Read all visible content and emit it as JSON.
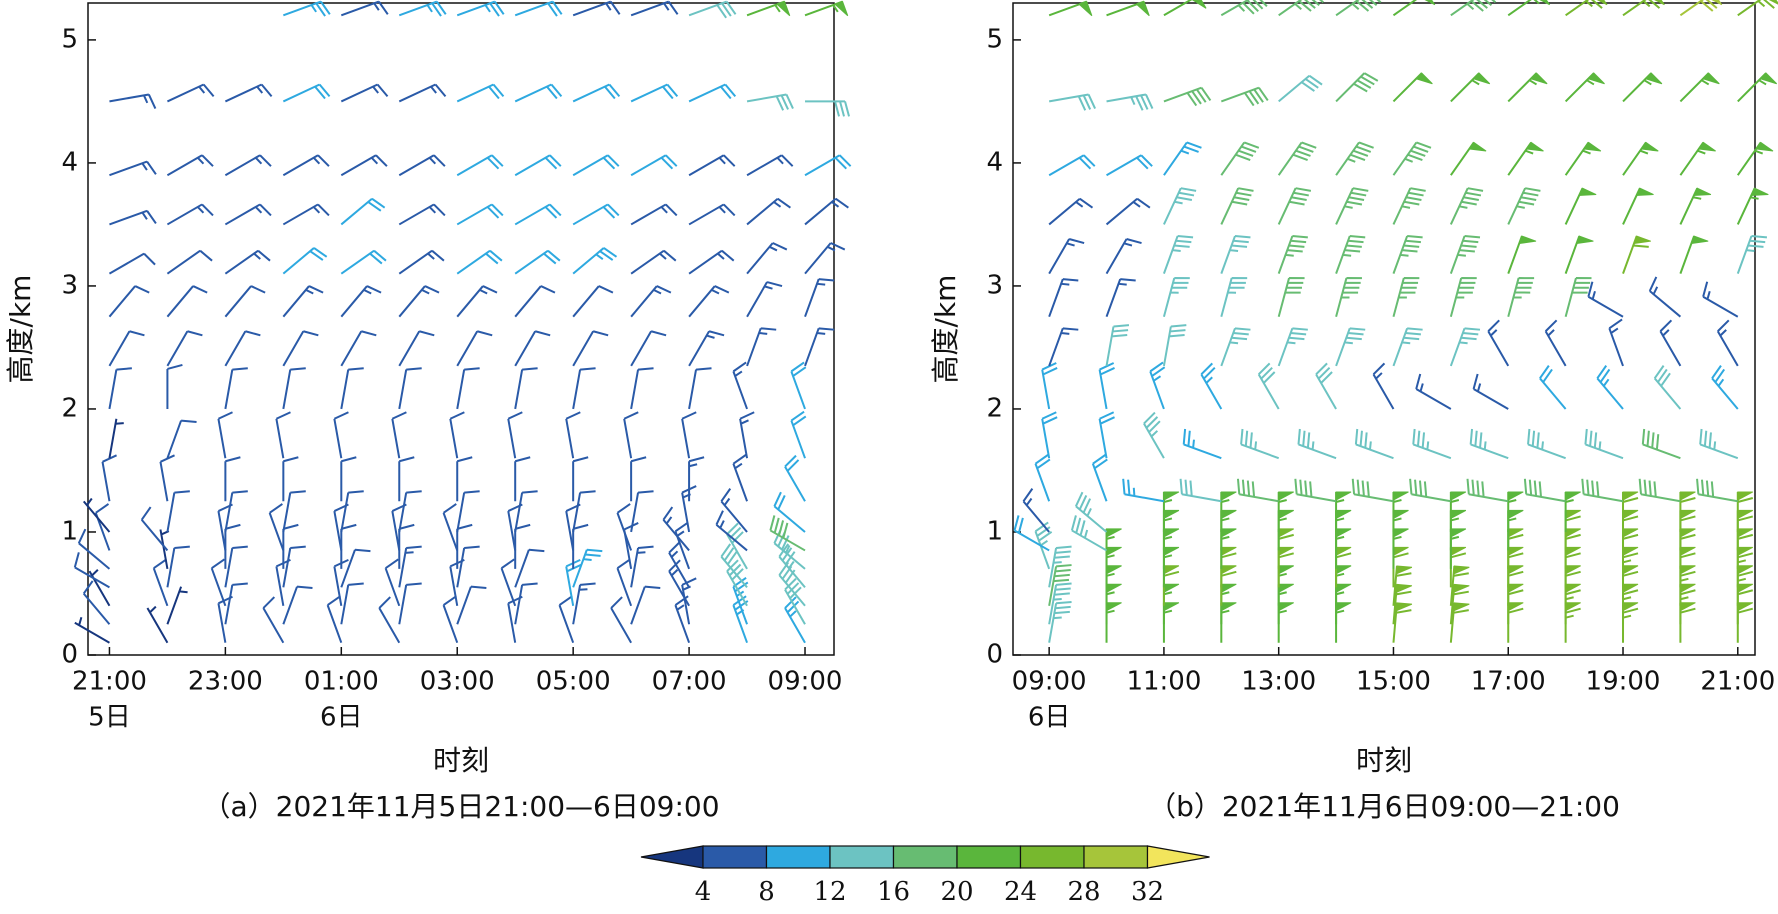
{
  "chart_data": [
    {
      "type": "wind_barb",
      "caption": "（a）2021年11月5日21:00—6日09:00",
      "xlabel": "时刻",
      "ylabel": "高度/km",
      "x": [
        0,
        1,
        2,
        3,
        4,
        5,
        6,
        7,
        8,
        9,
        10,
        11,
        12
      ],
      "xlim": [
        -0.37,
        12.5
      ],
      "xticks": [
        {
          "value": 0,
          "label": "21:00"
        },
        {
          "value": 2,
          "label": "23:00"
        },
        {
          "value": 4,
          "label": "01:00"
        },
        {
          "value": 6,
          "label": "03:00"
        },
        {
          "value": 8,
          "label": "05:00"
        },
        {
          "value": 10,
          "label": "07:00"
        },
        {
          "value": 12,
          "label": "09:00"
        }
      ],
      "day_labels": [
        {
          "value": 0,
          "label": "5日"
        },
        {
          "value": 4,
          "label": "6日"
        }
      ],
      "ylim": [
        0,
        5.3
      ],
      "yticks": [
        0,
        1,
        2,
        3,
        4,
        5
      ],
      "levels": [
        0.1,
        0.25,
        0.4,
        0.55,
        0.7,
        0.85,
        1.0,
        1.25,
        1.6,
        2.0,
        2.35,
        2.75,
        3.1,
        3.5,
        3.9,
        4.5,
        5.2
      ],
      "speed": [
        [
          3,
          4,
          3,
          4,
          4,
          4,
          3,
          4,
          3,
          4,
          4,
          4,
          5,
          6,
          6,
          6,
          null
        ],
        [
          3,
          3,
          4,
          4,
          3,
          4,
          4,
          4,
          4,
          5,
          5,
          5,
          5,
          6,
          6,
          6,
          null
        ],
        [
          4,
          4,
          5,
          4,
          5,
          4,
          5,
          4,
          4,
          4,
          5,
          5,
          6,
          6,
          6,
          6,
          null
        ],
        [
          4,
          5,
          4,
          4,
          5,
          5,
          4,
          4,
          4,
          5,
          5,
          6,
          8,
          6,
          6,
          9,
          10
        ],
        [
          4,
          5,
          5,
          5,
          4,
          4,
          4,
          5,
          4,
          4,
          5,
          6,
          9,
          9,
          6,
          6,
          6
        ],
        [
          5,
          5,
          5,
          6,
          4,
          5,
          5,
          4,
          4,
          4,
          5,
          6,
          6,
          6,
          6,
          6,
          10
        ],
        [
          5,
          5,
          4,
          5,
          5,
          5,
          5,
          4,
          4,
          4,
          5,
          6,
          9,
          9,
          9,
          9,
          10
        ],
        [
          5,
          5,
          5,
          5,
          5,
          5,
          5,
          5,
          4,
          4,
          5,
          5,
          9,
          9,
          9,
          9,
          9
        ],
        [
          5,
          6,
          9,
          10,
          5,
          5,
          5,
          4,
          4,
          4,
          5,
          5,
          10,
          9,
          9,
          9,
          6
        ],
        [
          5,
          5,
          5,
          6,
          5,
          5,
          5,
          5,
          4,
          5,
          5,
          6,
          6,
          6,
          9,
          9,
          6
        ],
        [
          6,
          6,
          6,
          7,
          6,
          7,
          6,
          6,
          5,
          5,
          6,
          6,
          6,
          7,
          7,
          9,
          13
        ],
        [
          10,
          10,
          12,
          12,
          12,
          7,
          7,
          7,
          6,
          7,
          7,
          7,
          7,
          7,
          7,
          13,
          22
        ],
        [
          10,
          12,
          13,
          14,
          14,
          16,
          8,
          9,
          9,
          9,
          6,
          7,
          7,
          7,
          9,
          13,
          22
        ]
      ],
      "direction": [
        [
          300,
          320,
          330,
          300,
          310,
          340,
          320,
          350,
          10,
          10,
          30,
          40,
          60,
          70,
          70,
          80,
          null
        ],
        [
          330,
          20,
          340,
          10,
          350,
          320,
          10,
          350,
          20,
          0,
          30,
          40,
          55,
          60,
          60,
          65,
          null
        ],
        [
          350,
          10,
          340,
          10,
          0,
          350,
          10,
          0,
          350,
          10,
          30,
          40,
          55,
          60,
          60,
          65,
          null
        ],
        [
          330,
          20,
          350,
          10,
          0,
          340,
          10,
          0,
          350,
          10,
          30,
          40,
          50,
          60,
          60,
          65,
          70
        ],
        [
          340,
          10,
          350,
          20,
          0,
          350,
          10,
          0,
          350,
          10,
          30,
          40,
          55,
          50,
          60,
          65,
          70
        ],
        [
          330,
          10,
          340,
          10,
          0,
          350,
          10,
          0,
          350,
          10,
          30,
          40,
          55,
          60,
          60,
          65,
          70
        ],
        [
          340,
          20,
          350,
          10,
          0,
          340,
          10,
          0,
          350,
          10,
          30,
          40,
          55,
          60,
          60,
          65,
          70
        ],
        [
          350,
          10,
          340,
          20,
          0,
          350,
          10,
          0,
          350,
          10,
          30,
          40,
          55,
          60,
          60,
          65,
          70
        ],
        [
          340,
          10,
          350,
          20,
          0,
          350,
          10,
          0,
          350,
          10,
          30,
          40,
          50,
          60,
          60,
          65,
          70
        ],
        [
          330,
          20,
          340,
          10,
          350,
          340,
          10,
          0,
          350,
          10,
          30,
          40,
          55,
          60,
          60,
          65,
          70
        ],
        [
          340,
          350,
          330,
          330,
          340,
          320,
          350,
          0,
          350,
          10,
          30,
          40,
          55,
          60,
          60,
          65,
          70
        ],
        [
          340,
          340,
          330,
          320,
          330,
          310,
          320,
          340,
          350,
          340,
          20,
          30,
          40,
          50,
          60,
          80,
          70
        ],
        [
          330,
          330,
          320,
          320,
          310,
          300,
          310,
          330,
          340,
          340,
          20,
          20,
          40,
          50,
          60,
          90,
          70
        ]
      ]
    },
    {
      "type": "wind_barb",
      "caption": "（b）2021年11月6日09:00—21:00",
      "xlabel": "时刻",
      "ylabel": "高度/km",
      "x": [
        0,
        1,
        2,
        3,
        4,
        5,
        6,
        7,
        8,
        9,
        10,
        11,
        12
      ],
      "xlim": [
        -0.63,
        12.3
      ],
      "xticks": [
        {
          "value": 0,
          "label": "09:00"
        },
        {
          "value": 2,
          "label": "11:00"
        },
        {
          "value": 4,
          "label": "13:00"
        },
        {
          "value": 6,
          "label": "15:00"
        },
        {
          "value": 8,
          "label": "17:00"
        },
        {
          "value": 10,
          "label": "19:00"
        },
        {
          "value": 12,
          "label": "21:00"
        }
      ],
      "day_labels": [
        {
          "value": 0,
          "label": "6日"
        }
      ],
      "ylim": [
        0,
        5.3
      ],
      "yticks": [
        0,
        1,
        2,
        3,
        4,
        5
      ],
      "levels": [
        0.1,
        0.25,
        0.4,
        0.55,
        0.7,
        0.85,
        1.0,
        1.25,
        1.6,
        2.0,
        2.35,
        2.75,
        3.1,
        3.5,
        3.9,
        4.5,
        5.2
      ],
      "speed": [
        [
          14,
          14,
          16,
          14,
          14,
          8,
          6,
          8,
          8,
          8,
          6,
          6,
          6,
          6,
          8,
          12,
          20
        ],
        [
          22,
          22,
          22,
          22,
          22,
          14,
          14,
          8,
          8,
          8,
          12,
          6,
          6,
          6,
          8,
          14,
          20
        ],
        [
          22,
          22,
          24,
          22,
          22,
          22,
          22,
          10,
          14,
          10,
          12,
          14,
          14,
          14,
          10,
          16,
          20
        ],
        [
          22,
          22,
          24,
          24,
          22,
          22,
          22,
          12,
          10,
          10,
          14,
          14,
          14,
          16,
          16,
          16,
          18
        ],
        [
          22,
          22,
          22,
          24,
          24,
          22,
          22,
          16,
          14,
          12,
          14,
          16,
          18,
          16,
          16,
          12,
          18
        ],
        [
          22,
          22,
          22,
          24,
          22,
          22,
          22,
          16,
          14,
          12,
          14,
          18,
          18,
          18,
          18,
          16,
          18
        ],
        [
          24,
          24,
          24,
          24,
          22,
          22,
          22,
          16,
          14,
          6,
          14,
          18,
          18,
          18,
          18,
          20,
          20
        ],
        [
          24,
          24,
          24,
          24,
          22,
          22,
          22,
          16,
          14,
          6,
          14,
          18,
          18,
          18,
          20,
          22,
          18
        ],
        [
          24,
          24,
          24,
          24,
          24,
          22,
          22,
          16,
          14,
          6,
          6,
          18,
          20,
          18,
          22,
          22,
          22
        ],
        [
          26,
          26,
          24,
          24,
          24,
          24,
          22,
          16,
          14,
          8,
          6,
          16,
          20,
          20,
          22,
          22,
          26
        ],
        [
          26,
          26,
          24,
          26,
          24,
          24,
          24,
          16,
          14,
          10,
          6,
          6,
          24,
          20,
          22,
          22,
          26
        ],
        [
          24,
          26,
          26,
          24,
          24,
          24,
          24,
          16,
          16,
          12,
          6,
          6,
          20,
          22,
          22,
          22,
          28
        ],
        [
          24,
          24,
          26,
          26,
          24,
          24,
          24,
          16,
          14,
          10,
          6,
          6,
          14,
          22,
          22,
          22,
          26
        ]
      ],
      "direction": [
        [
          10,
          10,
          10,
          10,
          340,
          300,
          320,
          340,
          350,
          350,
          20,
          20,
          30,
          50,
          60,
          80,
          70
        ],
        [
          0,
          0,
          0,
          0,
          0,
          300,
          310,
          340,
          350,
          350,
          10,
          20,
          30,
          50,
          60,
          80,
          70
        ],
        [
          0,
          0,
          0,
          0,
          0,
          0,
          0,
          280,
          330,
          340,
          10,
          15,
          20,
          25,
          35,
          70,
          60
        ],
        [
          0,
          0,
          0,
          0,
          0,
          0,
          0,
          280,
          290,
          330,
          20,
          15,
          20,
          25,
          35,
          70,
          60
        ],
        [
          0,
          0,
          0,
          0,
          0,
          0,
          0,
          280,
          290,
          330,
          20,
          15,
          20,
          25,
          35,
          50,
          55
        ],
        [
          0,
          0,
          0,
          0,
          0,
          0,
          0,
          280,
          290,
          330,
          20,
          15,
          20,
          25,
          35,
          45,
          55
        ],
        [
          5,
          5,
          5,
          0,
          0,
          0,
          0,
          280,
          290,
          330,
          20,
          15,
          20,
          25,
          35,
          45,
          55
        ],
        [
          5,
          5,
          5,
          0,
          0,
          0,
          0,
          280,
          290,
          300,
          20,
          15,
          20,
          25,
          35,
          45,
          55
        ],
        [
          0,
          0,
          0,
          0,
          0,
          0,
          0,
          280,
          290,
          300,
          330,
          15,
          20,
          25,
          35,
          45,
          55
        ],
        [
          0,
          0,
          0,
          0,
          0,
          0,
          0,
          280,
          290,
          320,
          330,
          15,
          20,
          25,
          35,
          45,
          55
        ],
        [
          0,
          0,
          0,
          0,
          0,
          0,
          0,
          280,
          290,
          320,
          340,
          300,
          20,
          25,
          35,
          45,
          55
        ],
        [
          0,
          0,
          0,
          0,
          0,
          0,
          0,
          280,
          290,
          320,
          330,
          310,
          20,
          25,
          35,
          45,
          55
        ],
        [
          0,
          0,
          0,
          0,
          0,
          0,
          0,
          280,
          290,
          320,
          330,
          300,
          20,
          25,
          35,
          45,
          55
        ]
      ]
    }
  ],
  "colorbar": {
    "levels": [
      4,
      8,
      12,
      16,
      20,
      24,
      28,
      32
    ],
    "colors": [
      "#16367e",
      "#2a5aa8",
      "#2ea9e0",
      "#6cc3c2",
      "#67bc72",
      "#5ab63c",
      "#77b82e",
      "#a6c53a",
      "#f2e55c"
    ],
    "extend": "both"
  }
}
